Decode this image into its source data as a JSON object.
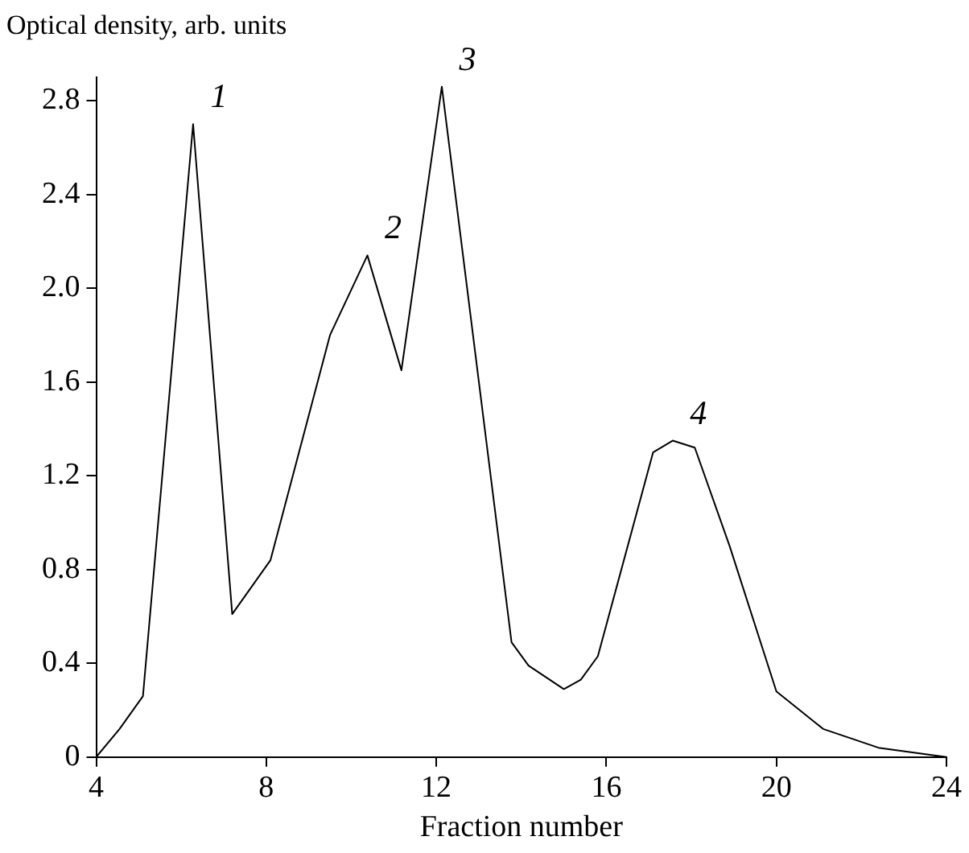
{
  "chart_data": {
    "type": "line",
    "xlabel": "Fraction number",
    "ylabel": "Optical density, arb. units",
    "x": [
      4,
      4.55,
      5.1,
      6.28,
      7.2,
      8.1,
      9.5,
      10.38,
      11.18,
      12.13,
      13.77,
      14.17,
      15.0,
      15.4,
      15.8,
      17.1,
      17.56,
      18.08,
      18.9,
      20.0,
      21.1,
      22.4,
      24
    ],
    "series": [
      {
        "color": "#000000",
        "values": [
          0,
          0.12,
          0.26,
          2.7,
          0.61,
          0.84,
          1.8,
          2.14,
          1.65,
          2.86,
          0.49,
          0.39,
          0.29,
          0.33,
          0.43,
          1.3,
          1.35,
          1.32,
          0.9,
          0.28,
          0.12,
          0.04,
          0
        ]
      }
    ],
    "xlim": [
      4,
      24
    ],
    "xticks": [
      4,
      8,
      12,
      16,
      20,
      24
    ],
    "ylim": [
      0,
      2.9
    ],
    "yticks": [
      0,
      {
        "value": 0.4,
        "label": "0.4"
      },
      {
        "value": 0.8,
        "label": "0.8"
      },
      {
        "value": 1.2,
        "label": "1.2"
      },
      {
        "value": 1.6,
        "label": "1.6"
      },
      {
        "value": 2,
        "label": "2.0"
      },
      {
        "value": 2.4,
        "label": "2.4"
      },
      {
        "value": 2.8,
        "label": "2.8"
      }
    ],
    "grid": false,
    "legend": false,
    "marker": "none",
    "line_style": "solid",
    "annotations": [
      "1",
      "2",
      "3",
      "4"
    ]
  }
}
